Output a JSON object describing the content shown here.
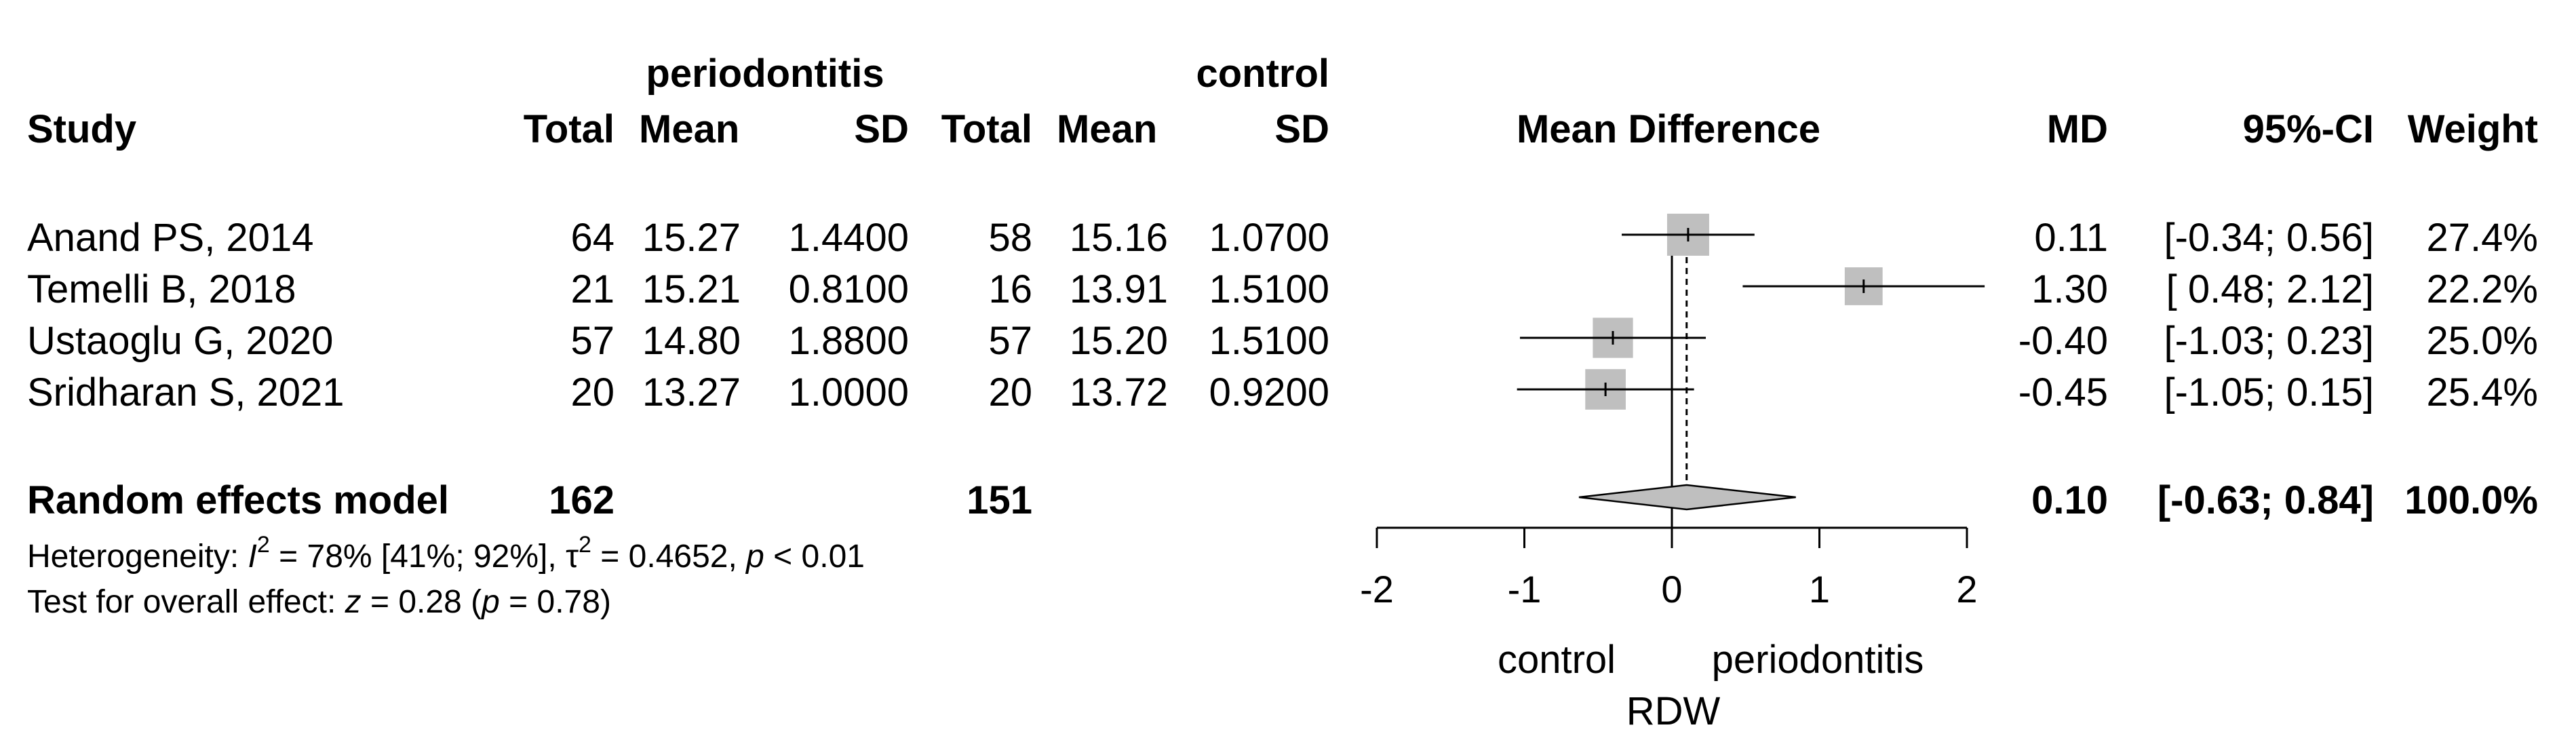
{
  "headers": {
    "group_exp": "periodontitis",
    "group_ctrl": "control",
    "study": "Study",
    "total_exp": "Total",
    "mean_exp": "Mean",
    "sd_exp": "SD",
    "total_ctrl": "Total",
    "mean_ctrl": "Mean",
    "sd_ctrl": "SD",
    "effect": "Mean Difference",
    "md": "MD",
    "ci": "95%-CI",
    "weight": "Weight"
  },
  "studies": [
    {
      "study": "Anand PS, 2014",
      "total_exp": "64",
      "mean_exp": "15.27",
      "sd_exp": "1.4400",
      "total_ctrl": "58",
      "mean_ctrl": "15.16",
      "sd_ctrl": "1.0700",
      "md_text": "0.11",
      "ci_text": "[-0.34; 0.56]",
      "weight_text": "27.4%"
    },
    {
      "study": "Temelli B, 2018",
      "total_exp": "21",
      "mean_exp": "15.21",
      "sd_exp": "0.8100",
      "total_ctrl": "16",
      "mean_ctrl": "13.91",
      "sd_ctrl": "1.5100",
      "md_text": "1.30",
      "ci_text": "[ 0.48; 2.12]",
      "weight_text": "22.2%"
    },
    {
      "study": "Ustaoglu G, 2020",
      "total_exp": "57",
      "mean_exp": "14.80",
      "sd_exp": "1.8800",
      "total_ctrl": "57",
      "mean_ctrl": "15.20",
      "sd_ctrl": "1.5100",
      "md_text": "-0.40",
      "ci_text": "[-1.03; 0.23]",
      "weight_text": "25.0%"
    },
    {
      "study": "Sridharan S, 2021",
      "total_exp": "20",
      "mean_exp": "13.27",
      "sd_exp": "1.0000",
      "total_ctrl": "20",
      "mean_ctrl": "13.72",
      "sd_ctrl": "0.9200",
      "md_text": "-0.45",
      "ci_text": "[-1.05; 0.15]",
      "weight_text": "25.4%"
    }
  ],
  "pooled": {
    "label": "Random effects model",
    "total_exp": "162",
    "total_ctrl": "151",
    "md_text": "0.10",
    "ci_text": "[-0.63; 0.84]",
    "weight_text": "100.0%"
  },
  "heterogeneity": {
    "prefix": "Heterogeneity: ",
    "i2_symbol": "I",
    "i2_exp": "2",
    "i2_value": " = 78% [41%; 92%], ",
    "tau_symbol": "τ",
    "tau_exp": "2",
    "tau_value": " = 0.4652, ",
    "p_symbol": "p",
    "p_value": " < 0.01"
  },
  "overall_test": {
    "prefix": "Test for overall effect: ",
    "z_symbol": "z",
    "z_value": " = 0.28 (",
    "p_symbol": "p",
    "p_value": " = 0.78)"
  },
  "chart_data": {
    "type": "forest",
    "x_range": [
      -2,
      2
    ],
    "x_ticks": [
      -2,
      -1,
      0,
      1,
      2
    ],
    "x_tick_labels": [
      "-2",
      "-1",
      "0",
      "1",
      "2"
    ],
    "null_line": 0,
    "pooled_line": 0.1,
    "left_label": "control",
    "right_label": "periodontitis",
    "xlabel": "RDW",
    "studies": [
      {
        "name": "Anand PS, 2014",
        "md": 0.11,
        "lower": -0.34,
        "upper": 0.56,
        "weight": 27.4
      },
      {
        "name": "Temelli B, 2018",
        "md": 1.3,
        "lower": 0.48,
        "upper": 2.12,
        "weight": 22.2
      },
      {
        "name": "Ustaoglu G, 2020",
        "md": -0.4,
        "lower": -1.03,
        "upper": 0.23,
        "weight": 25.0
      },
      {
        "name": "Sridharan S, 2021",
        "md": -0.45,
        "lower": -1.05,
        "upper": 0.15,
        "weight": 25.4
      }
    ],
    "pooled": {
      "md": 0.1,
      "lower": -0.63,
      "upper": 0.84,
      "weight": 100.0
    },
    "colors": {
      "box": "#bfbfbf",
      "diamond": "#bfbfbf",
      "line": "#000000"
    }
  }
}
